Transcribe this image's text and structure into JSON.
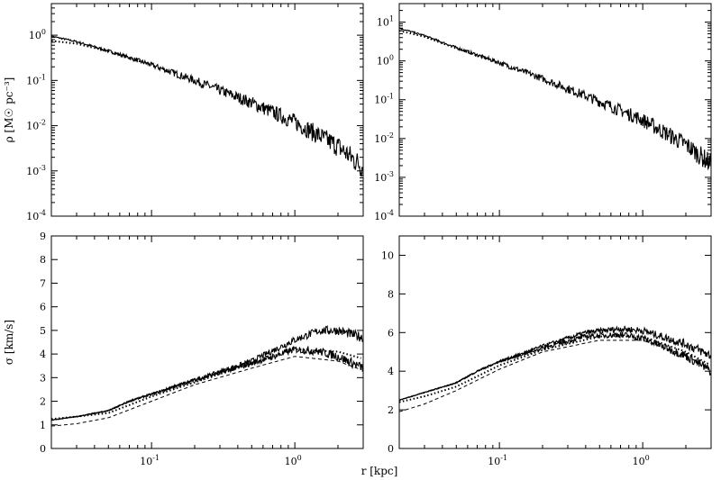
{
  "chart_data": [
    {
      "panel": "top-left",
      "type": "line",
      "x_scale": "log",
      "y_scale": "log",
      "xlim": [
        0.02,
        3.0
      ],
      "ylim": [
        0.0001,
        5
      ],
      "ylabel": "ρ [M☉ pc⁻³]",
      "y_ticks": [
        {
          "v": 1,
          "base": "10",
          "exp": "0"
        },
        {
          "v": 0.1,
          "base": "10",
          "exp": "-1"
        },
        {
          "v": 0.01,
          "base": "10",
          "exp": "-2"
        },
        {
          "v": 0.001,
          "base": "10",
          "exp": "-3"
        },
        {
          "v": 0.0001,
          "base": "10",
          "exp": "-4"
        }
      ],
      "x_ticks": [],
      "series": [
        {
          "style": "solid-noisy",
          "x": [
            0.02,
            0.03,
            0.05,
            0.1,
            0.2,
            0.5,
            1,
            2,
            3
          ],
          "values": [
            0.95,
            0.72,
            0.45,
            0.22,
            0.1,
            0.032,
            0.012,
            0.0035,
            0.0012
          ]
        },
        {
          "style": "dotted",
          "x": [
            0.02,
            0.03,
            0.05,
            0.1
          ],
          "values": [
            0.75,
            0.65,
            0.44,
            0.22
          ]
        }
      ]
    },
    {
      "panel": "top-right",
      "type": "line",
      "x_scale": "log",
      "y_scale": "log",
      "xlim": [
        0.02,
        3.0
      ],
      "ylim": [
        0.0001,
        30
      ],
      "ylabel": "",
      "y_ticks": [
        {
          "v": 10,
          "base": "10",
          "exp": "1"
        },
        {
          "v": 1,
          "base": "10",
          "exp": "0"
        },
        {
          "v": 0.1,
          "base": "10",
          "exp": "-1"
        },
        {
          "v": 0.01,
          "base": "10",
          "exp": "-2"
        },
        {
          "v": 0.001,
          "base": "10",
          "exp": "-3"
        },
        {
          "v": 0.0001,
          "base": "10",
          "exp": "-4"
        }
      ],
      "x_ticks": [],
      "series": [
        {
          "style": "solid-noisy",
          "x": [
            0.02,
            0.03,
            0.05,
            0.1,
            0.2,
            0.5,
            1,
            2,
            3
          ],
          "values": [
            7,
            4.5,
            2.2,
            0.9,
            0.35,
            0.09,
            0.03,
            0.007,
            0.0022
          ]
        },
        {
          "style": "dotted",
          "x": [
            0.02,
            0.03,
            0.05,
            0.1
          ],
          "values": [
            6,
            4.2,
            2.1,
            0.88
          ]
        }
      ]
    },
    {
      "panel": "bottom-left",
      "type": "line",
      "x_scale": "log",
      "y_scale": "linear",
      "xlim": [
        0.02,
        3.0
      ],
      "ylim": [
        0,
        9
      ],
      "ylabel": "σ [km/s]",
      "y_ticks": [
        {
          "v": 0,
          "label": "0"
        },
        {
          "v": 1,
          "label": "1"
        },
        {
          "v": 2,
          "label": "2"
        },
        {
          "v": 3,
          "label": "3"
        },
        {
          "v": 4,
          "label": "4"
        },
        {
          "v": 5,
          "label": "5"
        },
        {
          "v": 6,
          "label": "6"
        },
        {
          "v": 7,
          "label": "7"
        },
        {
          "v": 8,
          "label": "8"
        },
        {
          "v": 9,
          "label": "9"
        }
      ],
      "x_ticks": [
        {
          "v": 0.1,
          "base": "10",
          "exp": "-1"
        },
        {
          "v": 1,
          "base": "10",
          "exp": "0"
        }
      ],
      "series": [
        {
          "style": "solid-noisy",
          "x": [
            0.02,
            0.03,
            0.05,
            0.07,
            0.1,
            0.2,
            0.5,
            1,
            1.5,
            2,
            3
          ],
          "values": [
            1.2,
            1.35,
            1.6,
            2.0,
            2.3,
            2.9,
            3.7,
            4.6,
            5.0,
            5.0,
            4.7
          ]
        },
        {
          "style": "solid-noisy",
          "x": [
            0.02,
            0.03,
            0.05,
            0.07,
            0.1,
            0.2,
            0.5,
            1,
            1.5,
            2,
            3
          ],
          "values": [
            1.2,
            1.35,
            1.6,
            2.0,
            2.3,
            2.9,
            3.6,
            4.2,
            4.1,
            3.9,
            3.4
          ]
        },
        {
          "style": "dotted",
          "x": [
            0.02,
            0.03,
            0.05,
            0.1,
            0.2,
            0.5,
            1,
            2,
            3
          ],
          "values": [
            1.25,
            1.35,
            1.5,
            2.2,
            2.8,
            3.6,
            4.2,
            4.1,
            3.8
          ]
        },
        {
          "style": "dashed",
          "x": [
            0.02,
            0.03,
            0.05,
            0.1,
            0.2,
            0.5,
            1,
            2,
            3
          ],
          "values": [
            0.95,
            1.05,
            1.3,
            2.0,
            2.7,
            3.4,
            3.9,
            3.7,
            3.3
          ]
        }
      ]
    },
    {
      "panel": "bottom-right",
      "type": "line",
      "x_scale": "log",
      "y_scale": "linear",
      "xlim": [
        0.02,
        3.0
      ],
      "ylim": [
        0,
        11
      ],
      "ylabel": "",
      "y_ticks": [
        {
          "v": 0,
          "label": "0"
        },
        {
          "v": 2,
          "label": "2"
        },
        {
          "v": 4,
          "label": "4"
        },
        {
          "v": 6,
          "label": "6"
        },
        {
          "v": 8,
          "label": "8"
        },
        {
          "v": 10,
          "label": "10"
        }
      ],
      "x_ticks": [
        {
          "v": 0.1,
          "base": "10",
          "exp": "-1"
        },
        {
          "v": 1,
          "base": "10",
          "exp": "0"
        }
      ],
      "series": [
        {
          "style": "solid-noisy",
          "x": [
            0.02,
            0.03,
            0.05,
            0.07,
            0.1,
            0.2,
            0.4,
            0.7,
            1,
            2,
            3
          ],
          "values": [
            2.5,
            2.9,
            3.4,
            4.0,
            4.5,
            5.3,
            6.0,
            6.2,
            6.1,
            5.4,
            4.8
          ]
        },
        {
          "style": "solid-noisy",
          "x": [
            0.02,
            0.03,
            0.05,
            0.07,
            0.1,
            0.2,
            0.4,
            0.7,
            1,
            2,
            3
          ],
          "values": [
            2.5,
            2.9,
            3.4,
            4.0,
            4.5,
            5.2,
            5.8,
            5.9,
            5.7,
            4.8,
            4.0
          ]
        },
        {
          "style": "dotted",
          "x": [
            0.02,
            0.03,
            0.05,
            0.1,
            0.2,
            0.5,
            1,
            2,
            3
          ],
          "values": [
            2.4,
            2.7,
            3.2,
            4.3,
            5.1,
            5.8,
            5.8,
            5.0,
            4.3
          ]
        },
        {
          "style": "dashed",
          "x": [
            0.02,
            0.03,
            0.05,
            0.1,
            0.2,
            0.5,
            1,
            2,
            3
          ],
          "values": [
            1.9,
            2.3,
            3.0,
            4.1,
            5.0,
            5.6,
            5.6,
            4.8,
            4.1
          ]
        }
      ]
    }
  ],
  "xlabel": "r [kpc]"
}
